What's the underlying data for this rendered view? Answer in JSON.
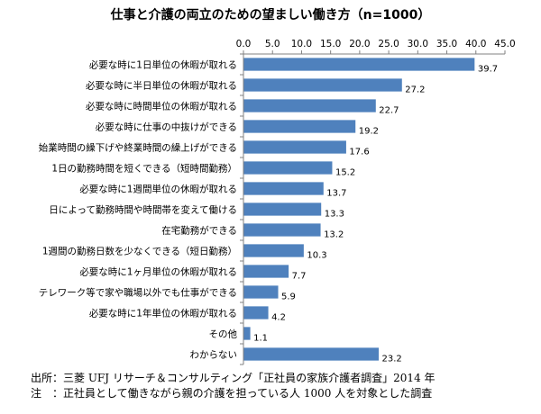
{
  "chart_data": {
    "type": "bar",
    "orientation": "horizontal",
    "title": "仕事と介護の両立のための望ましい働き方（n=1000）",
    "xlim": [
      0,
      45
    ],
    "x_ticks": [
      "0.0",
      "5.0",
      "10.0",
      "15.0",
      "20.0",
      "25.0",
      "30.0",
      "35.0",
      "40.0",
      "45.0"
    ],
    "grid": false,
    "bar_color": "#4f81bd",
    "categories": [
      "必要な時に1日単位の休暇が取れる",
      "必要な時に半日単位の休暇が取れる",
      "必要な時に時間単位の休暇が取れる",
      "必要な時に仕事の中抜けができる",
      "始業時間の繰下げや終業時間の繰上げができる",
      "1日の勤務時間を短くできる（短時間勤務）",
      "必要な時に1週間単位の休暇が取れる",
      "日によって勤務時間や時間帯を変えて働ける",
      "在宅勤務ができる",
      "1週間の勤務日数を少なくできる（短日勤務）",
      "必要な時に1ヶ月単位の休暇が取れる",
      "テレワーク等で家や職場以外でも仕事ができる",
      "必要な時に1年単位の休暇が取れる",
      "その他",
      "わからない"
    ],
    "values": [
      39.7,
      27.2,
      22.7,
      19.2,
      17.6,
      15.2,
      13.7,
      13.3,
      13.2,
      10.3,
      7.7,
      5.9,
      4.2,
      1.1,
      23.2
    ],
    "value_labels": [
      "39.7",
      "27.2",
      "22.7",
      "19.2",
      "17.6",
      "15.2",
      "13.7",
      "13.3",
      "13.2",
      "10.3",
      "7.7",
      "5.9",
      "4.2",
      "1.1",
      "23.2"
    ]
  },
  "footer": {
    "source": "出所：三菱 UFJ リサーチ＆コンサルティング「正社員の家族介護者調査」2014 年",
    "note": "注　：正社員として働きながら親の介護を担っている人 1000 人を対象とした調査"
  }
}
